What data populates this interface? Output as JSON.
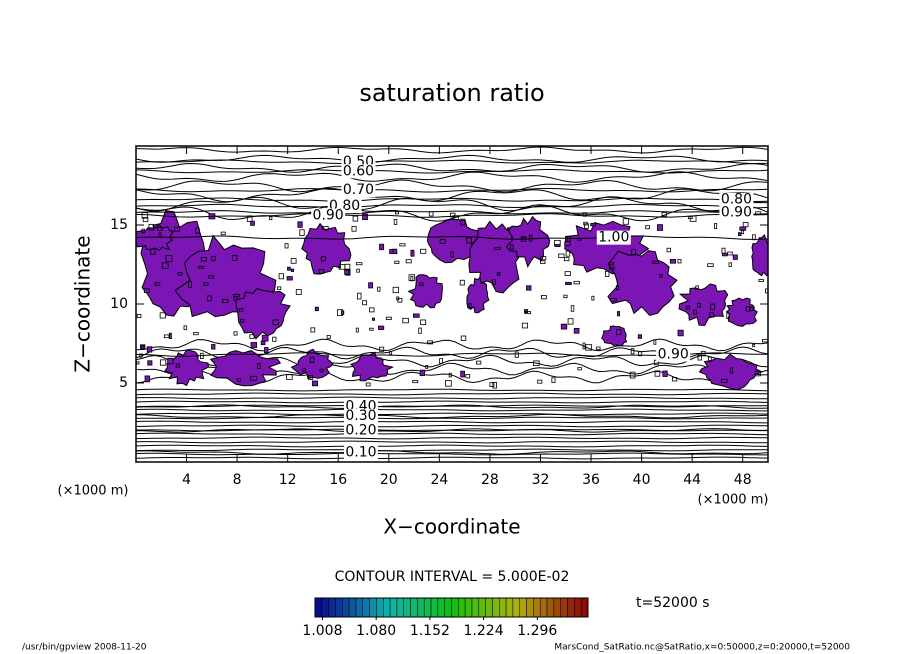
{
  "chart_data": {
    "type": "contour",
    "title": "saturation ratio",
    "x_label": "X−coordinate",
    "y_label": "Z−coordinate",
    "x_unit": "(×1000 m)",
    "y_unit": "(×1000 m)",
    "xlim": [
      0,
      50
    ],
    "ylim": [
      0,
      20
    ],
    "xticks": [
      4,
      8,
      12,
      16,
      20,
      24,
      28,
      32,
      36,
      40,
      44,
      48
    ],
    "yticks": [
      5,
      10,
      15
    ],
    "region_color": "#7b16b5",
    "contour_labels": [
      {
        "value": 0.5,
        "label": "0.50",
        "x": 17.6,
        "z": 19.0
      },
      {
        "value": 0.6,
        "label": "0.60",
        "x": 17.6,
        "z": 18.4
      },
      {
        "value": 0.7,
        "label": "0.70",
        "x": 17.6,
        "z": 17.2
      },
      {
        "value": 0.8,
        "label": "0.80",
        "x": 16.5,
        "z": 16.2
      },
      {
        "value": 0.9,
        "label": "0.90",
        "x": 15.2,
        "z": 15.6
      },
      {
        "value": 0.8,
        "label": "0.80",
        "x": 47.5,
        "z": 16.6
      },
      {
        "value": 0.9,
        "label": "0.90",
        "x": 47.5,
        "z": 15.8
      },
      {
        "value": 1.0,
        "label": "1.00",
        "x": 37.8,
        "z": 14.2
      },
      {
        "value": 0.9,
        "label": "0.90",
        "x": 42.5,
        "z": 6.8
      },
      {
        "value": 0.4,
        "label": "0.40",
        "x": 17.8,
        "z": 3.5
      },
      {
        "value": 0.3,
        "label": "0.30",
        "x": 17.8,
        "z": 2.9
      },
      {
        "value": 0.2,
        "label": "0.20",
        "x": 17.8,
        "z": 2.0
      },
      {
        "value": 0.1,
        "label": "0.10",
        "x": 17.8,
        "z": 0.6
      }
    ],
    "contour_interval": "CONTOUR INTERVAL = 5.000E-02",
    "time_label": "t=52000 s",
    "colorbar": {
      "clim": [
        0.998,
        1.364
      ],
      "ticks": [
        {
          "value": 1.008,
          "label": "1.008"
        },
        {
          "value": 1.08,
          "label": "1.080"
        },
        {
          "value": 1.152,
          "label": "1.152"
        },
        {
          "value": 1.224,
          "label": "1.224"
        },
        {
          "value": 1.296,
          "label": "1.296"
        }
      ]
    },
    "footer_left": "/usr/bin/gpview  2008-11-20",
    "footer_right": "MarsCond_SatRatio.nc@SatRatio,x=0:50000,z=0:20000,t=52000"
  }
}
